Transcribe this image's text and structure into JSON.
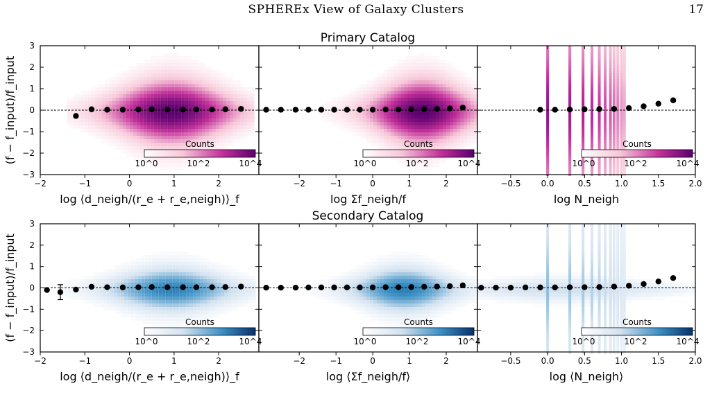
{
  "header": {
    "title": "SPHEREx View of Galaxy Clusters",
    "page_number": "17"
  },
  "colors": {
    "primary_colormap_max": "#5a006e",
    "primary_colormap_mid": "#c3309a",
    "primary_colormap_low": "#f7c6d8",
    "secondary_colormap_max": "#08306b",
    "secondary_colormap_mid": "#3a8fc4",
    "secondary_colormap_low": "#d3e2f0",
    "points": "#000000",
    "reference_line": "#000000"
  },
  "figure": {
    "ylabel": "(f − f_input)/f_input",
    "y_ticks": [
      "3",
      "2",
      "1",
      "0",
      "−1",
      "−2",
      "−3"
    ],
    "colorbar_label": "Counts",
    "colorbar_ticks": [
      "10^0",
      "10^2",
      "10^4"
    ],
    "rows": [
      {
        "title": "Primary Catalog",
        "cmap": "pink"
      },
      {
        "title": "Secondary Catalog",
        "cmap": "blue"
      }
    ],
    "columns": [
      {
        "xlabel_top": "log ⟨d_neigh/(r_e + r_e,neigh)⟩_f",
        "xlabel_bottom": "log ⟨d_neigh/(r_e + r_e,neigh)⟩_f",
        "ticks_top": [
          "−2",
          "−1",
          "0",
          "1",
          "2"
        ],
        "ticks_bottom": [
          "−2",
          "−1",
          "0",
          "1",
          "2"
        ]
      },
      {
        "xlabel_top": "log Σf_neigh/f",
        "xlabel_bottom": "log ⟨Σf_neigh/f⟩",
        "ticks_top": [
          "−2",
          "−1",
          "0",
          "1",
          "2"
        ],
        "ticks_bottom": [
          "−2",
          "−1",
          "0",
          "1",
          "2"
        ]
      },
      {
        "xlabel_top": "log N_neigh",
        "xlabel_bottom": "log ⟨N_neigh⟩",
        "ticks_top": [
          "−0.5",
          "0.0",
          "0.5",
          "1.0",
          "1.5",
          "2.0"
        ],
        "ticks_bottom": [
          "−0.5",
          "0.0",
          "0.5",
          "1.0",
          "1.5",
          "2.0"
        ]
      }
    ]
  },
  "chart_data": [
    {
      "type": "scatter",
      "title": "Primary Catalog",
      "xlabel": "log ⟨d_neigh/(r_e + r_e,neigh)⟩_f",
      "ylabel": "(f − f_input)/f_input",
      "xlim": [
        -2,
        2.9
      ],
      "ylim": [
        -3,
        3
      ],
      "density": {
        "xmin": -1.4,
        "xmax": 2.75,
        "peak_x": 0.9,
        "spread": 1.0,
        "vmax": 1.0
      },
      "x": [
        -1.2,
        -0.85,
        -0.5,
        -0.15,
        0.2,
        0.5,
        0.85,
        1.2,
        1.5,
        1.85,
        2.15,
        2.5
      ],
      "y": [
        -0.27,
        0.04,
        0.02,
        0.02,
        0.03,
        0.04,
        0.03,
        0.03,
        0.03,
        0.03,
        0.04,
        0.06
      ],
      "yerr": [
        0.08,
        0.03,
        0.02,
        0.02,
        0.02,
        0.02,
        0.02,
        0.02,
        0.02,
        0.02,
        0.03,
        0.05
      ]
    },
    {
      "type": "scatter",
      "title": "",
      "xlabel": "log Σf_neigh/f",
      "ylabel": "",
      "xlim": [
        -3.1,
        2.85
      ],
      "ylim": [
        -3,
        3
      ],
      "density": {
        "xmin": -3.1,
        "xmax": 2.85,
        "peak_x": 1.3,
        "spread": 1.0,
        "vmax": 1.0
      },
      "x": [
        -2.9,
        -2.5,
        -2.1,
        -1.75,
        -1.4,
        -1.05,
        -0.7,
        -0.35,
        0.0,
        0.35,
        0.7,
        1.05,
        1.4,
        1.75,
        2.1,
        2.45
      ],
      "y": [
        0.02,
        0.02,
        0.02,
        0.02,
        0.02,
        0.02,
        0.02,
        0.02,
        0.02,
        0.03,
        0.03,
        0.04,
        0.05,
        0.06,
        0.08,
        0.12
      ],
      "yerr": [
        0.02,
        0.02,
        0.02,
        0.02,
        0.02,
        0.02,
        0.02,
        0.02,
        0.02,
        0.02,
        0.02,
        0.02,
        0.02,
        0.02,
        0.03,
        0.05
      ]
    },
    {
      "type": "scatter",
      "title": "",
      "xlabel": "log N_neigh",
      "ylabel": "",
      "xlim": [
        -0.95,
        2.0
      ],
      "ylim": [
        -3,
        3
      ],
      "discrete_x": [
        0.0,
        0.3,
        0.48,
        0.6,
        0.7,
        0.78,
        0.85,
        0.9,
        0.95,
        1.0,
        1.04
      ],
      "x": [
        -0.1,
        0.1,
        0.3,
        0.5,
        0.7,
        0.9,
        1.1,
        1.3,
        1.5,
        1.7
      ],
      "y": [
        0.02,
        0.02,
        0.03,
        0.04,
        0.05,
        0.06,
        0.1,
        0.18,
        0.3,
        0.46
      ],
      "yerr": [
        0.02,
        0.02,
        0.02,
        0.02,
        0.02,
        0.03,
        0.04,
        0.05,
        0.06,
        0.08
      ]
    },
    {
      "type": "scatter",
      "title": "Secondary Catalog",
      "xlabel": "log ⟨d_neigh/(r_e + r_e,neigh)⟩_f",
      "ylabel": "(f − f_input)/f_input",
      "xlim": [
        -2,
        2.9
      ],
      "ylim": [
        -3,
        3
      ],
      "density": {
        "xmin": -1.6,
        "xmax": 2.8,
        "peak_x": 0.9,
        "spread": 0.7,
        "vmax": 0.75
      },
      "x": [
        -1.85,
        -1.55,
        -1.2,
        -0.85,
        -0.5,
        -0.15,
        0.2,
        0.5,
        0.85,
        1.2,
        1.5,
        1.85,
        2.15,
        2.5
      ],
      "y": [
        -0.1,
        -0.2,
        -0.08,
        0.05,
        0.03,
        0.02,
        0.03,
        0.04,
        0.03,
        0.03,
        0.03,
        0.03,
        0.04,
        0.06
      ],
      "yerr": [
        0.05,
        0.35,
        0.05,
        0.03,
        0.02,
        0.02,
        0.02,
        0.02,
        0.02,
        0.02,
        0.02,
        0.02,
        0.03,
        0.05
      ]
    },
    {
      "type": "scatter",
      "title": "",
      "xlabel": "log ⟨Σf_neigh/f⟩",
      "ylabel": "",
      "xlim": [
        -3.1,
        2.85
      ],
      "ylim": [
        -3,
        3
      ],
      "density": {
        "xmin": -3.1,
        "xmax": 2.85,
        "peak_x": 0.8,
        "spread": 0.7,
        "vmax": 0.75
      },
      "x": [
        -2.9,
        -2.5,
        -2.1,
        -1.75,
        -1.4,
        -1.05,
        -0.7,
        -0.35,
        0.0,
        0.35,
        0.7,
        1.05,
        1.4,
        1.75,
        2.1,
        2.45
      ],
      "y": [
        0.01,
        0.01,
        0.01,
        0.02,
        0.02,
        0.02,
        0.02,
        0.02,
        0.02,
        0.03,
        0.03,
        0.04,
        0.05,
        0.06,
        0.08,
        0.12
      ],
      "yerr": [
        0.02,
        0.02,
        0.02,
        0.02,
        0.02,
        0.02,
        0.02,
        0.02,
        0.02,
        0.02,
        0.02,
        0.02,
        0.02,
        0.02,
        0.03,
        0.05
      ]
    },
    {
      "type": "scatter",
      "title": "",
      "xlabel": "log ⟨N_neigh⟩",
      "ylabel": "",
      "xlim": [
        -0.95,
        2.0
      ],
      "ylim": [
        -3,
        3
      ],
      "discrete_x": [
        0.0,
        0.3,
        0.48,
        0.6,
        0.7,
        0.78,
        0.85,
        0.9,
        0.95,
        1.0,
        1.04
      ],
      "density": {
        "xmin": -0.95,
        "xmax": 2.0,
        "peak_x": 0.2,
        "spread": 0.35,
        "vmax": 0.35
      },
      "x": [
        -0.9,
        -0.7,
        -0.5,
        -0.3,
        -0.1,
        0.1,
        0.3,
        0.5,
        0.7,
        0.9,
        1.1,
        1.3,
        1.5,
        1.7
      ],
      "y": [
        0.01,
        0.01,
        0.01,
        0.02,
        0.02,
        0.02,
        0.03,
        0.03,
        0.04,
        0.06,
        0.1,
        0.18,
        0.3,
        0.46
      ],
      "yerr": [
        0.02,
        0.02,
        0.02,
        0.02,
        0.02,
        0.02,
        0.02,
        0.02,
        0.02,
        0.03,
        0.04,
        0.05,
        0.06,
        0.08
      ]
    }
  ]
}
